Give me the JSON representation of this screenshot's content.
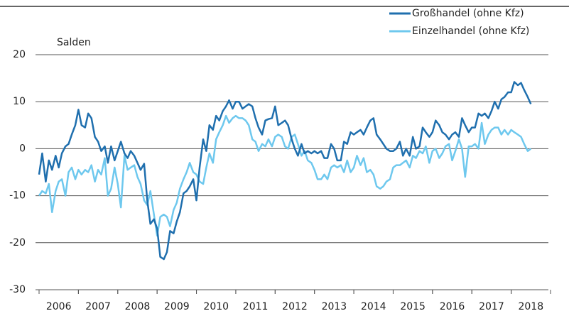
{
  "chart_data": {
    "type": "line",
    "ylabel": "Salden",
    "xlim": [
      2006,
      2019
    ],
    "ylim": [
      -30,
      20
    ],
    "yticks": [
      -30,
      -20,
      -10,
      0,
      10,
      20
    ],
    "xticks": [
      {
        "value": 2006.5,
        "label": "2006"
      },
      {
        "value": 2007.5,
        "label": "2007"
      },
      {
        "value": 2008.5,
        "label": "2008"
      },
      {
        "value": 2009.5,
        "label": "2009"
      },
      {
        "value": 2010.5,
        "label": "2010"
      },
      {
        "value": 2011.5,
        "label": "2011"
      },
      {
        "value": 2012.5,
        "label": "2012"
      },
      {
        "value": 2013.5,
        "label": "2013"
      },
      {
        "value": 2014.5,
        "label": "2014"
      },
      {
        "value": 2015.5,
        "label": "2015"
      },
      {
        "value": 2016.5,
        "label": "2016"
      },
      {
        "value": 2017.5,
        "label": "2017"
      },
      {
        "value": 2018.5,
        "label": "2018"
      }
    ],
    "grid": true,
    "legend": "top-right",
    "x": [
      2006,
      2006.08,
      2006.17,
      2006.25,
      2006.33,
      2006.42,
      2006.5,
      2006.58,
      2006.67,
      2006.75,
      2006.83,
      2006.92,
      2007,
      2007.08,
      2007.17,
      2007.25,
      2007.33,
      2007.42,
      2007.5,
      2007.58,
      2007.67,
      2007.75,
      2007.83,
      2007.92,
      2008,
      2008.08,
      2008.17,
      2008.25,
      2008.33,
      2008.42,
      2008.5,
      2008.58,
      2008.67,
      2008.75,
      2008.83,
      2008.92,
      2009,
      2009.08,
      2009.17,
      2009.25,
      2009.33,
      2009.42,
      2009.5,
      2009.58,
      2009.67,
      2009.75,
      2009.83,
      2009.92,
      2010,
      2010.08,
      2010.17,
      2010.25,
      2010.33,
      2010.42,
      2010.5,
      2010.58,
      2010.67,
      2010.75,
      2010.83,
      2010.92,
      2011,
      2011.08,
      2011.17,
      2011.25,
      2011.33,
      2011.42,
      2011.5,
      2011.58,
      2011.67,
      2011.75,
      2011.83,
      2011.92,
      2012,
      2012.08,
      2012.17,
      2012.25,
      2012.33,
      2012.42,
      2012.5,
      2012.58,
      2012.67,
      2012.75,
      2012.83,
      2012.92,
      2013,
      2013.08,
      2013.17,
      2013.25,
      2013.33,
      2013.42,
      2013.5,
      2013.58,
      2013.67,
      2013.75,
      2013.83,
      2013.92,
      2014,
      2014.08,
      2014.17,
      2014.25,
      2014.33,
      2014.42,
      2014.5,
      2014.58,
      2014.67,
      2014.75,
      2014.83,
      2014.92,
      2015,
      2015.08,
      2015.17,
      2015.25,
      2015.33,
      2015.42,
      2015.5,
      2015.58,
      2015.67,
      2015.75,
      2015.83,
      2015.92,
      2016,
      2016.08,
      2016.17,
      2016.25,
      2016.33,
      2016.42,
      2016.5,
      2016.58,
      2016.67,
      2016.75,
      2016.83,
      2016.92,
      2017,
      2017.08,
      2017.17,
      2017.25,
      2017.33,
      2017.42,
      2017.5,
      2017.58,
      2017.67,
      2017.75,
      2017.83,
      2017.92,
      2018,
      2018.08,
      2018.17,
      2018.25,
      2018.33,
      2018.42,
      2018.5
    ],
    "series": [
      {
        "name": "Großhandel (ohne  Kfz)",
        "color": "#1f6fae",
        "values": [
          -5.5,
          -1,
          -7,
          -2.5,
          -4.5,
          -1.5,
          -4,
          -1,
          0.5,
          1,
          3,
          5,
          8.3,
          5,
          4.5,
          7.5,
          6.5,
          2.5,
          1.5,
          -0.5,
          0.5,
          -3,
          0.5,
          -2.5,
          -0.5,
          1.5,
          -1,
          -2,
          -0.5,
          -1.5,
          -3,
          -4.5,
          -3.2,
          -11,
          -16,
          -15,
          -17,
          -23,
          -23.5,
          -22,
          -17.5,
          -18,
          -15.5,
          -13.5,
          -9.5,
          -9,
          -8,
          -6.5,
          -11,
          -4,
          2,
          -0.5,
          5,
          4,
          7,
          6,
          8,
          9,
          10.3,
          8.5,
          10,
          10,
          8.5,
          9,
          9.5,
          9,
          6.5,
          4.5,
          3,
          6,
          6.3,
          6.5,
          9,
          5,
          5.5,
          6,
          5,
          2,
          0,
          -1.5,
          1,
          -1,
          -0.5,
          -1,
          -0.5,
          -1,
          -0.5,
          -2,
          -2,
          1,
          0,
          -2.5,
          -2.5,
          1.5,
          1,
          3.5,
          3,
          3.5,
          4,
          3,
          4.5,
          6,
          6.5,
          3,
          2,
          1,
          0,
          -0.5,
          -0.5,
          0,
          1.5,
          -1.5,
          0,
          -1.5,
          2.5,
          0,
          0.5,
          4.5,
          3.5,
          2.5,
          3.5,
          6,
          5,
          3.5,
          3,
          2,
          3,
          3.5,
          2.5,
          6.5,
          5,
          3.5,
          4.5,
          4.5,
          7.5,
          7,
          7.5,
          6.5,
          8,
          10,
          8.5,
          10.5,
          11,
          12,
          12,
          14.2,
          13.5,
          14,
          12.5,
          11,
          9.5
        ]
      },
      {
        "name": "Einzelhandel (ohne  Kfz)",
        "color": "#6ec8ee",
        "values": [
          -10,
          -9,
          -9.5,
          -7.5,
          -13.5,
          -9,
          -7,
          -6.5,
          -10,
          -5,
          -4,
          -6.5,
          -4.5,
          -5.5,
          -4.5,
          -5,
          -3.5,
          -7,
          -4.5,
          -5.5,
          -2,
          -10,
          -8.5,
          -4,
          -7.5,
          -12.5,
          -1.5,
          -4.5,
          -4,
          -3.5,
          -6,
          -7.5,
          -11,
          -12,
          -9,
          -14,
          -18.5,
          -14.5,
          -14,
          -14.5,
          -16.5,
          -13,
          -11.5,
          -8.5,
          -6.5,
          -5,
          -3,
          -5,
          -5.5,
          -7,
          -7.5,
          -4,
          -1,
          -3,
          2,
          3.5,
          5,
          7,
          5.5,
          6.5,
          7,
          6.5,
          6.5,
          6,
          5,
          2,
          1.5,
          -0.5,
          1,
          0.5,
          2,
          0.5,
          2.5,
          3,
          2.5,
          0.5,
          0,
          2.5,
          3,
          1,
          -1.5,
          -0.5,
          -2.5,
          -3,
          -4.5,
          -6.5,
          -6.5,
          -5.5,
          -6.5,
          -4,
          -3.5,
          -4,
          -3.5,
          -5,
          -2.5,
          -5,
          -4,
          -1.5,
          -3.5,
          -2,
          -5,
          -4.5,
          -5.5,
          -8,
          -8.5,
          -8,
          -7,
          -6.5,
          -4,
          -3.5,
          -3.5,
          -3,
          -2.5,
          -4,
          -1.5,
          -2,
          -0.5,
          -1,
          0.5,
          -3,
          -0.5,
          0,
          -2,
          -1,
          0.5,
          1,
          -2.5,
          -0.5,
          2,
          0,
          -6,
          0.5,
          0.5,
          1,
          0,
          5.5,
          1,
          3,
          4,
          4.5,
          4.5,
          3,
          4,
          3,
          4,
          3.5,
          3,
          2.5,
          1,
          -0.5,
          0
        ]
      }
    ]
  }
}
